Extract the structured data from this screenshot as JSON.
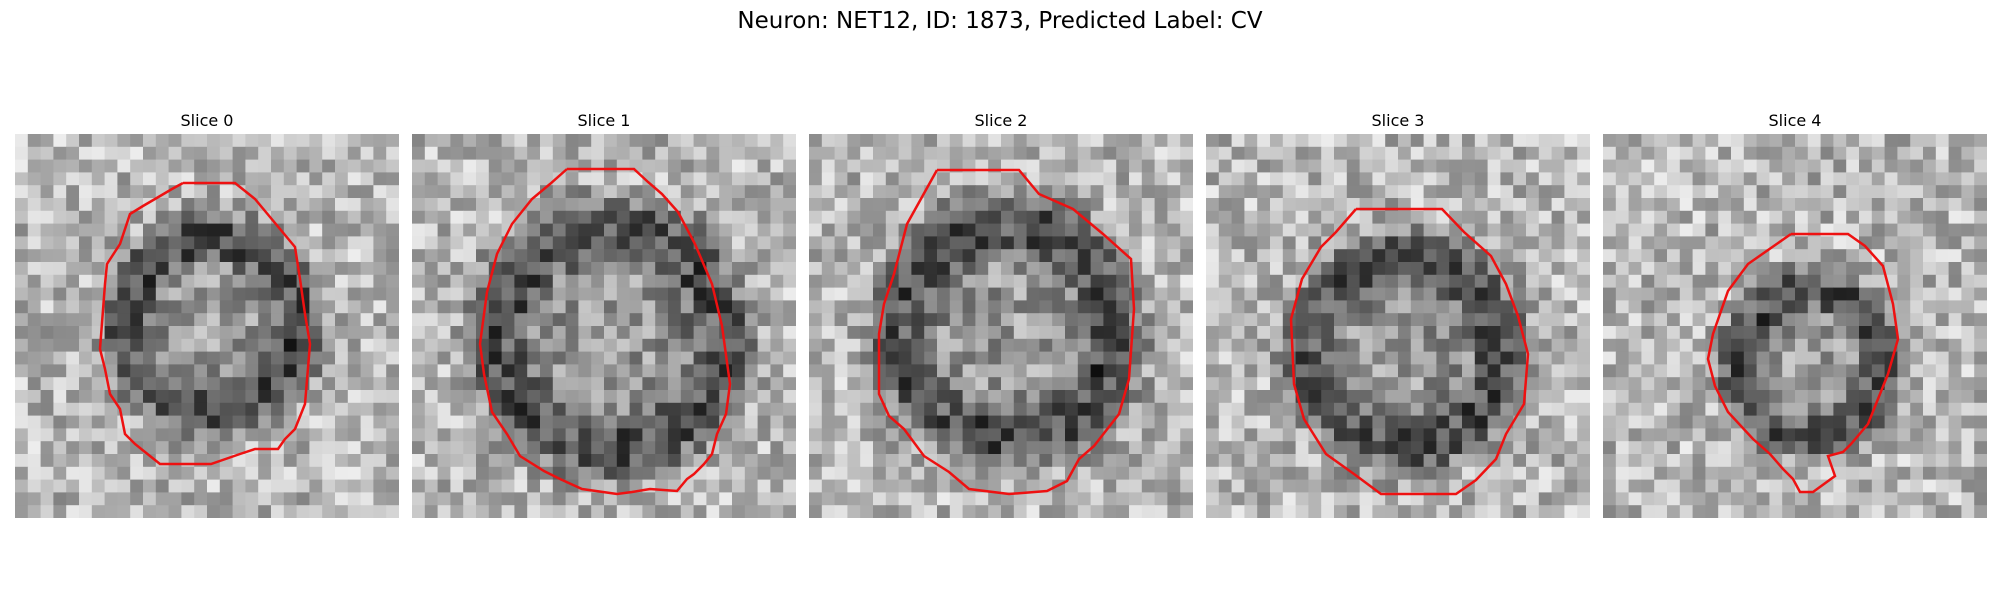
{
  "figure": {
    "title": "Neuron: NET12, ID: 1873, Predicted Label: CV"
  },
  "panels": [
    {
      "title": "Slice 0"
    },
    {
      "title": "Slice 1"
    },
    {
      "title": "Slice 2"
    },
    {
      "title": "Slice 3"
    },
    {
      "title": "Slice 4"
    }
  ],
  "colors": {
    "contour": "#ee1111",
    "background": "#ffffff"
  }
}
